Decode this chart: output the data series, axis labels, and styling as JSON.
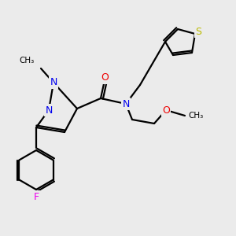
{
  "background_color": "#ebebeb",
  "bond_color": "#000000",
  "atom_colors": {
    "N": "#0000ee",
    "O": "#ee0000",
    "F": "#ee00ee",
    "S": "#bbbb00",
    "C": "#000000"
  },
  "figsize": [
    3.0,
    3.0
  ],
  "dpi": 100
}
